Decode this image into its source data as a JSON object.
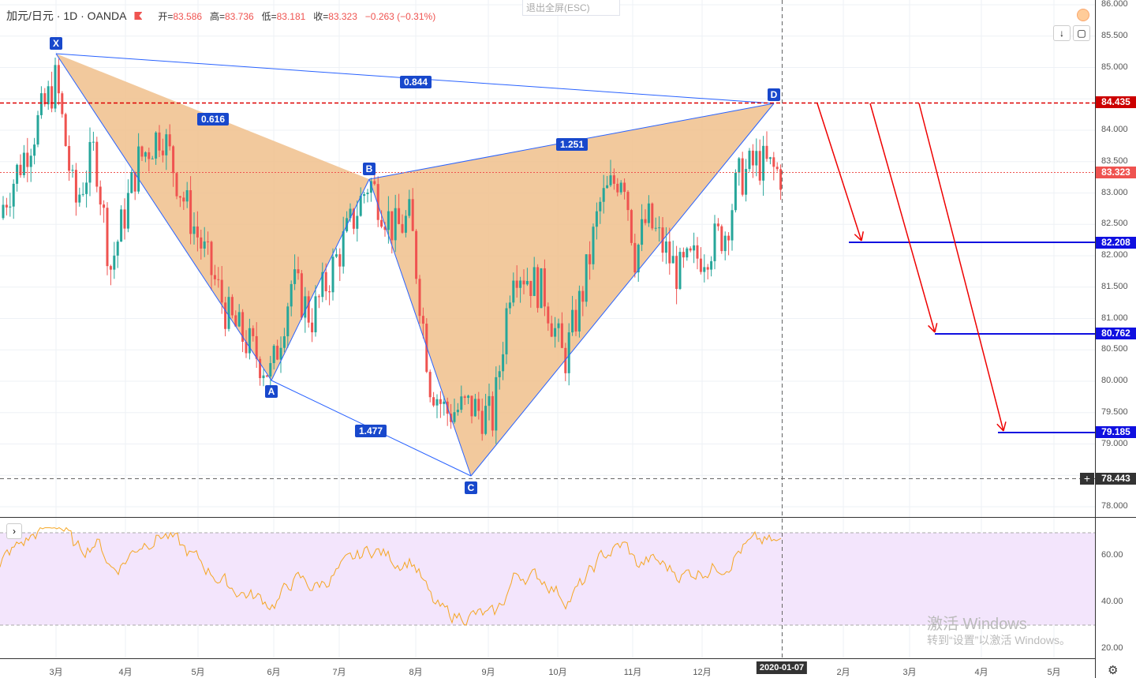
{
  "header": {
    "symbol": "加元/日元 · 1D · OANDA",
    "open_label": "开=",
    "open": "83.586",
    "high_label": "高=",
    "high": "83.736",
    "low_label": "低=",
    "low": "83.181",
    "close_label": "收=",
    "close": "83.323",
    "change": "−0.263 (−0.31%)"
  },
  "exit_fullscreen": "退出全屏(ESC)",
  "price_axis": [
    "86.000",
    "85.500",
    "85.000",
    "84.000",
    "83.500",
    "83.000",
    "82.500",
    "82.000",
    "81.500",
    "81.000",
    "80.500",
    "80.000",
    "79.500",
    "79.000",
    "78.000"
  ],
  "price_labels": {
    "d_level": "84.435",
    "last": "83.323",
    "t1": "82.208",
    "t2": "80.762",
    "t3": "79.185",
    "crosshair": "78.443"
  },
  "pattern": {
    "points": [
      "X",
      "A",
      "B",
      "C",
      "D"
    ],
    "ratios": {
      "xd": "0.844",
      "xb": "0.616",
      "bd": "1.251",
      "ac": "1.477"
    }
  },
  "time_axis": [
    "3月",
    "4月",
    "5月",
    "6月",
    "7月",
    "8月",
    "9月",
    "10月",
    "11月",
    "12月",
    "2020-01-07",
    "2月",
    "3月",
    "4月",
    "5月"
  ],
  "rsi_axis": [
    "60.00",
    "40.00",
    "20.00"
  ],
  "watermark": {
    "line1": "激活 Windows",
    "line2": "转到“设置”以激活 Windows。"
  },
  "colors": {
    "up": "#26a69a",
    "down": "#ef5350",
    "pattern": "#f0c08c",
    "line": "#2962ff"
  }
}
